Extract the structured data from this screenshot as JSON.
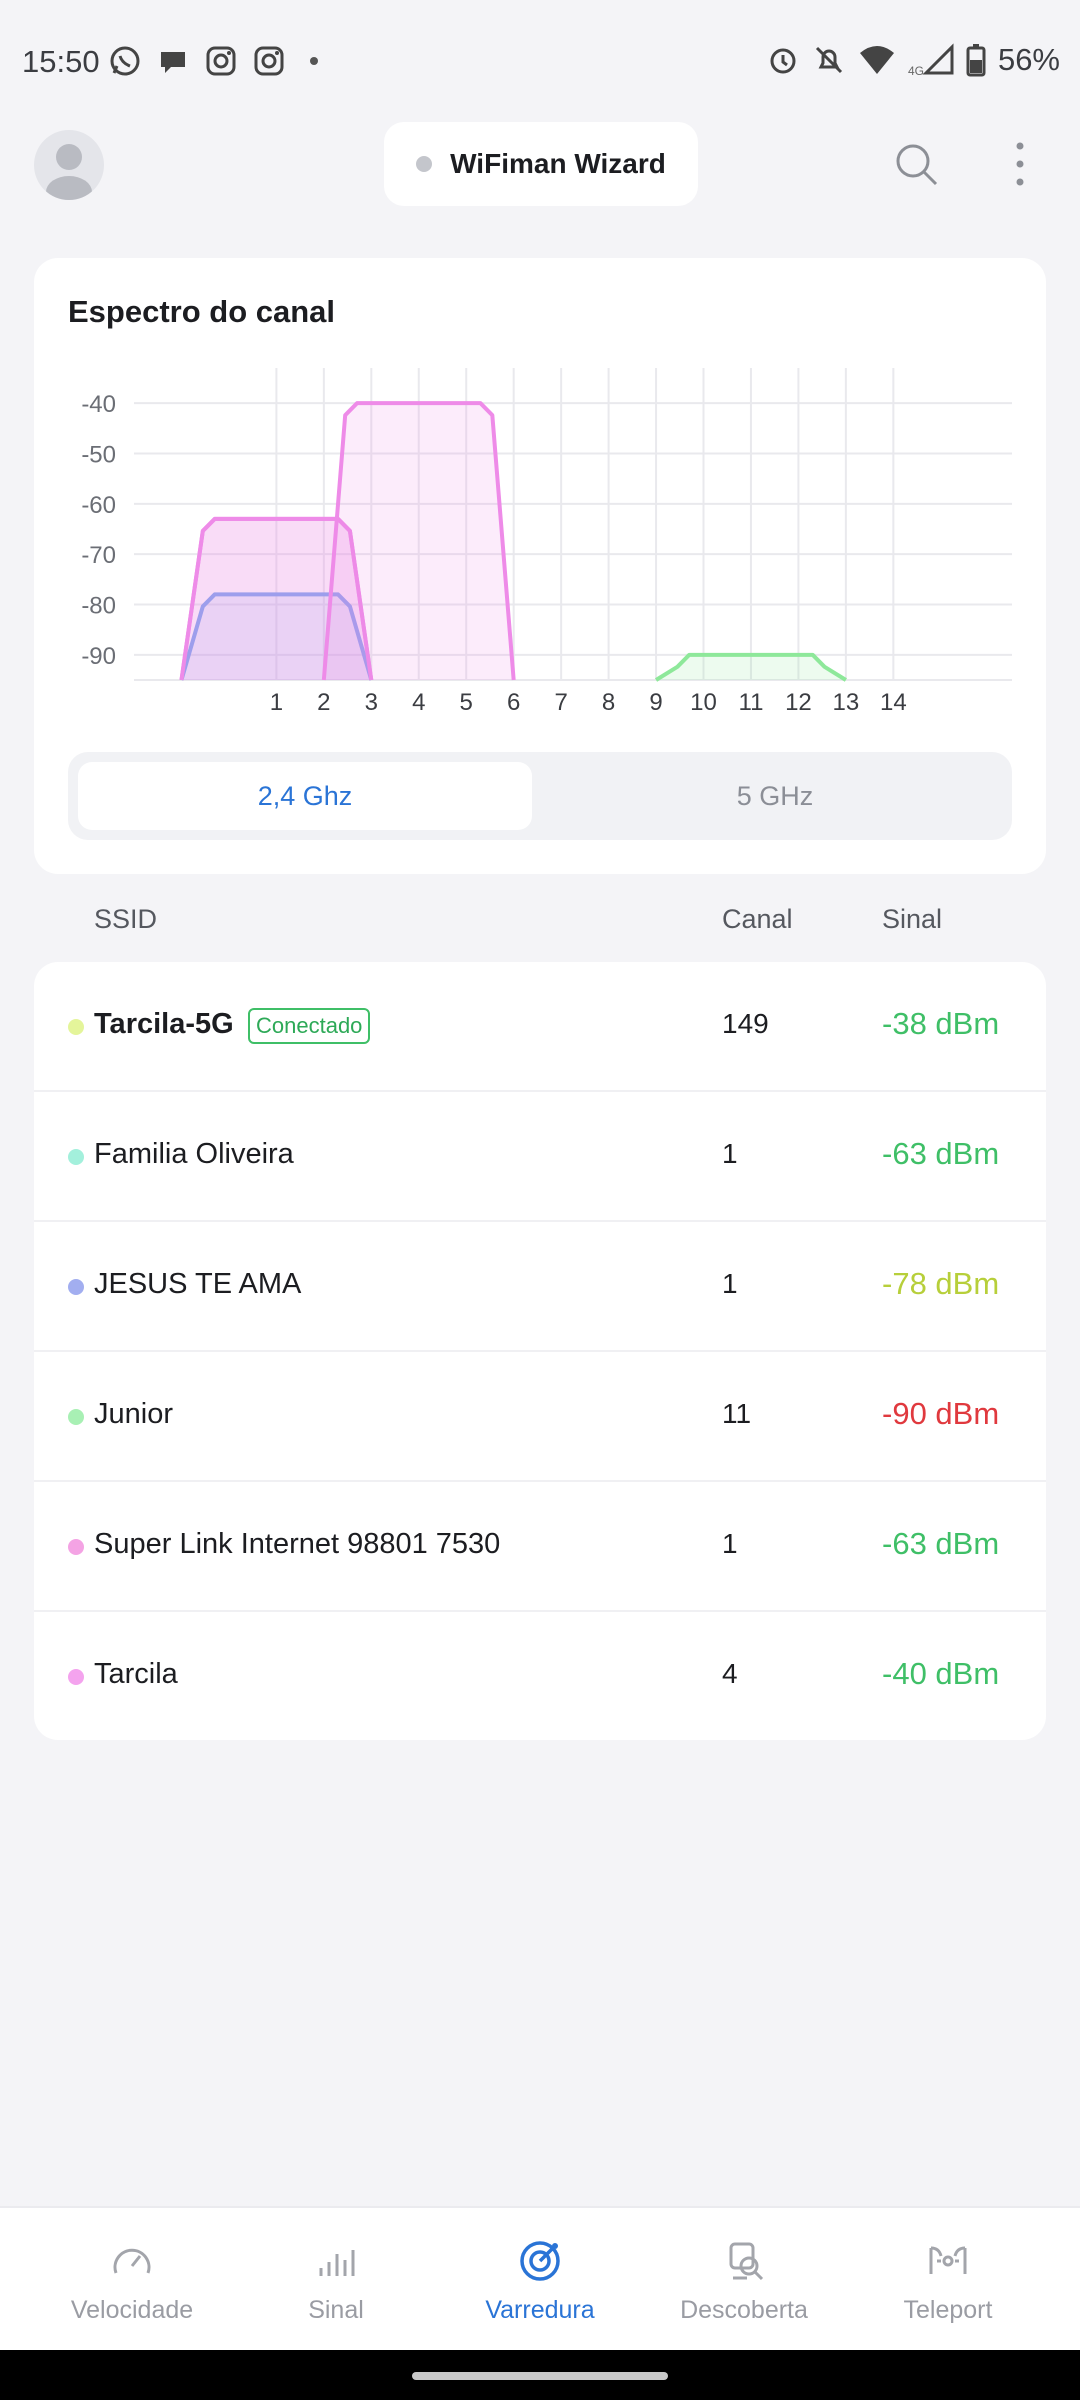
{
  "status_bar": {
    "time": "15:50",
    "left_icons": [
      "whatsapp-icon",
      "chat-bubble-icon",
      "instagram-icon",
      "instagram-icon"
    ],
    "right_icons": [
      "alarm-icon",
      "bell-off-icon",
      "wifi-icon",
      "4g-signal-icon",
      "battery-icon"
    ],
    "network_label": "4G",
    "battery": "56%"
  },
  "header": {
    "wizard_label": "WiFiman Wizard",
    "avatar_icon": "user-avatar-icon",
    "search_icon": "search-icon",
    "more_icon": "more-vertical-icon"
  },
  "spectrum": {
    "title": "Espectro do canal",
    "bands": {
      "active": "2,4 Ghz",
      "inactive": "5 GHz"
    }
  },
  "chart_data": {
    "type": "area",
    "y_ticks": [
      "-40",
      "-50",
      "-60",
      "-70",
      "-80",
      "-90"
    ],
    "x_ticks": [
      "1",
      "2",
      "3",
      "4",
      "5",
      "6",
      "7",
      "8",
      "9",
      "10",
      "11",
      "12",
      "13",
      "14"
    ],
    "ylim": [
      -95,
      -35
    ],
    "xlim": [
      -2,
      16.5
    ],
    "grid": true,
    "series": [
      {
        "name": "Familia Oliveira",
        "channel": 1,
        "signal": -63,
        "color": "#ee8be8"
      },
      {
        "name": "JESUS TE AMA",
        "channel": 1,
        "signal": -78,
        "color": "#8ea2ee"
      },
      {
        "name": "Super Link Internet 98801 7530",
        "channel": 1,
        "signal": -63,
        "color": "#ee8be8"
      },
      {
        "name": "Tarcila",
        "channel": 4,
        "signal": -40,
        "color": "#ee8be8"
      },
      {
        "name": "Junior",
        "channel": 11,
        "signal": -90,
        "color": "#8ee89a"
      }
    ]
  },
  "table": {
    "headers": {
      "ssid": "SSID",
      "canal": "Canal",
      "sinal": "Sinal"
    },
    "rows": [
      {
        "ssid": "Tarcila-5G",
        "badge": "Conectado",
        "canal": "149",
        "sinal": "-38 dBm",
        "dot_color": "#e4f59a",
        "sinal_color": "#3fbf67",
        "bold": true
      },
      {
        "ssid": "Familia Oliveira",
        "canal": "1",
        "sinal": "-63 dBm",
        "dot_color": "#a3f0dc",
        "sinal_color": "#3fbf67"
      },
      {
        "ssid": "JESUS TE AMA",
        "canal": "1",
        "sinal": "-78 dBm",
        "dot_color": "#a2aef0",
        "sinal_color": "#b7cf3a"
      },
      {
        "ssid": "Junior",
        "canal": "11",
        "sinal": "-90 dBm",
        "dot_color": "#a8f0b4",
        "sinal_color": "#e0393e"
      },
      {
        "ssid": "Super Link Internet 98801 7530",
        "canal": "1",
        "sinal": "-63 dBm",
        "dot_color": "#f4a3e4",
        "sinal_color": "#3fbf67"
      },
      {
        "ssid": "Tarcila",
        "canal": "4",
        "sinal": "-40 dBm",
        "dot_color": "#f4a3ee",
        "sinal_color": "#3fbf67"
      }
    ]
  },
  "bottom_nav": [
    {
      "label": "Velocidade",
      "icon": "speedometer-icon",
      "active": false
    },
    {
      "label": "Sinal",
      "icon": "signal-bars-icon",
      "active": false
    },
    {
      "label": "Varredura",
      "icon": "radar-scan-icon",
      "active": true
    },
    {
      "label": "Descoberta",
      "icon": "device-discovery-icon",
      "active": false
    },
    {
      "label": "Teleport",
      "icon": "teleport-icon",
      "active": false
    }
  ]
}
